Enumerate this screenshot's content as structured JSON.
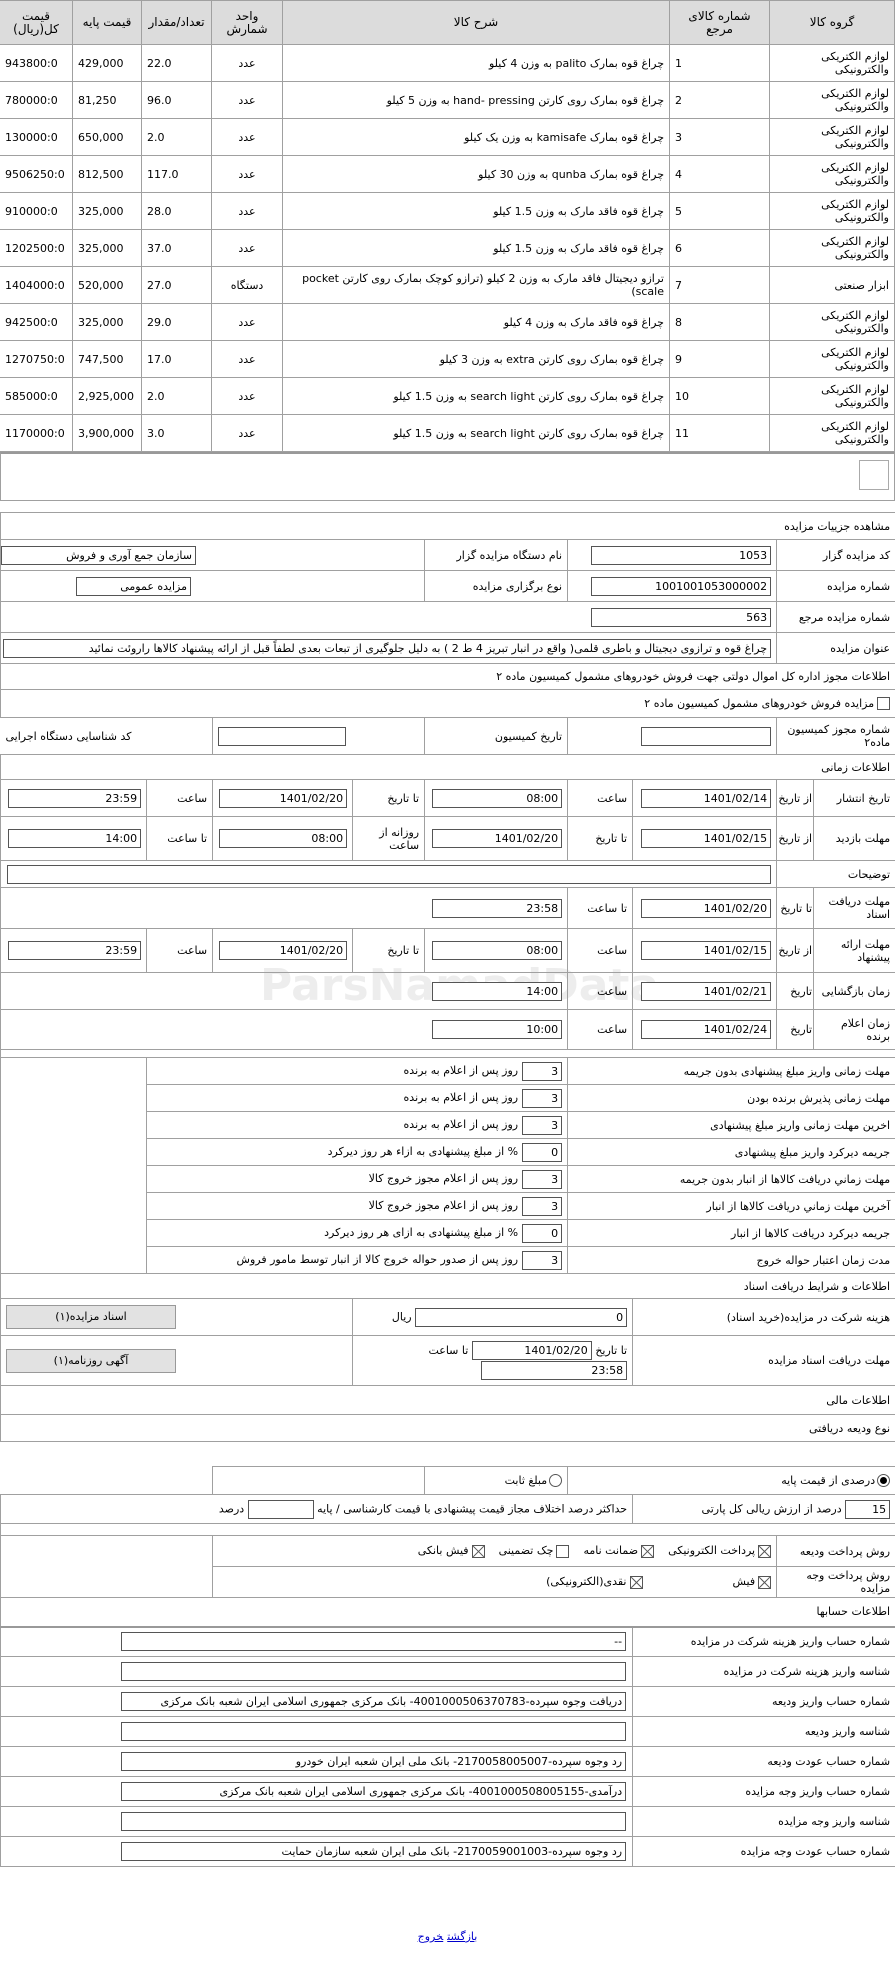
{
  "items_table": {
    "headers": [
      "گروه کالا",
      "شماره کالای مرجع",
      "شرح کالا",
      "واحد شمارش",
      "تعداد/مقدار",
      "قیمت پایه",
      "قیمت کل(ریال)"
    ],
    "rows": [
      [
        "لوازم الکتریکی والکترونیکی",
        "1",
        "چراغ قوه بمارک palito به وزن 4 کیلو",
        "عدد",
        "22.0",
        "429,000",
        "943800:0"
      ],
      [
        "لوازم الکتریکی والکترونیکی",
        "2",
        "چراغ قوه بمارک روی کارتن hand- pressing به وزن 5 کیلو",
        "عدد",
        "96.0",
        "81,250",
        "780000:0"
      ],
      [
        "لوازم الکتریکی والکترونیکی",
        "3",
        "چراغ قوه بمارک kamisafe به وزن یک کیلو",
        "عدد",
        "2.0",
        "650,000",
        "130000:0"
      ],
      [
        "لوازم الکتریکی والکترونیکی",
        "4",
        "چراغ قوه بمارک qunba به وزن 30 کیلو",
        "عدد",
        "117.0",
        "812,500",
        "9506250:0"
      ],
      [
        "لوازم الکتریکی والکترونیکی",
        "5",
        "چراغ قوه فاقد مارک به وزن 1.5 کیلو",
        "عدد",
        "28.0",
        "325,000",
        "910000:0"
      ],
      [
        "لوازم الکتریکی والکترونیکی",
        "6",
        "چراغ قوه فاقد مارک به وزن 1.5 کیلو",
        "عدد",
        "37.0",
        "325,000",
        "1202500:0"
      ],
      [
        "ابزار صنعتی",
        "7",
        "ترازو دیجیتال فاقد مارک به وزن 2 کیلو (ترازو کوچک بمارک روی کارتن pocket scale)",
        "دستگاه",
        "27.0",
        "520,000",
        "1404000:0"
      ],
      [
        "لوازم الکتریکی والکترونیکی",
        "8",
        "چراغ قوه فاقد مارک به وزن 4 کیلو",
        "عدد",
        "29.0",
        "325,000",
        "942500:0"
      ],
      [
        "لوازم الکتریکی والکترونیکی",
        "9",
        "چراغ قوه بمارک روی کارتن extra به وزن 3 کیلو",
        "عدد",
        "17.0",
        "747,500",
        "1270750:0"
      ],
      [
        "لوازم الکتریکی والکترونیکی",
        "10",
        "چراغ قوه بمارک روی کارتن search light به وزن 1.5 کیلو",
        "عدد",
        "2.0",
        "2,925,000",
        "585000:0"
      ],
      [
        "لوازم الکتریکی والکترونیکی",
        "11",
        "چراغ قوه بمارک روی کارتن search light به وزن 1.5 کیلو",
        "عدد",
        "3.0",
        "3,900,000",
        "1170000:0"
      ]
    ]
  },
  "details": {
    "title": "مشاهده جزییات مزایده",
    "auctioneer_code_label": "کد مزایده گزار",
    "auctioneer_code": "1053",
    "auctioneer_name_label": "نام دستگاه مزایده گزار",
    "auctioneer_name": "سازمان جمع آوری و فروش",
    "auction_number_label": "شماره مزایده",
    "auction_number": "1001001053000002",
    "auction_type_label": "نوع برگزاری مزایده",
    "auction_type": "مزایده عمومی",
    "ref_number_label": "شماره مزایده مرجع",
    "ref_number": "563",
    "auction_title_label": "عنوان مزایده",
    "auction_title": "چراغ قوه و ترازوی دیجیتال و باطری قلمی( واقع در انبار تبریز 4 ط 2 ) به دلیل جلوگیری از تبعات بعدی لطفاً قبل از ارائه پیشنهاد کالاها راروئت نمائید",
    "permit_info": "اطلاعات مجوز اداره کل اموال دولتی جهت فروش خودروهای مشمول کمیسیون ماده ۲",
    "vehicle_checkbox_label": "مزایده فروش خودروهای مشمول کمیسیون ماده ۲",
    "permit_number_label": "شماره مجوز کمیسیون ماده۲",
    "commission_date_label": "تاریخ کمیسیون",
    "executive_code_label": "کد شناسایی دستگاه اجرایی"
  },
  "timing": {
    "section": "اطلاعات زمانی",
    "from_date": "از تاریخ",
    "to_date": "تا تاریخ",
    "hour": "ساعت",
    "to_hour": "تا ساعت",
    "date": "تاریخ",
    "daily_from_hour": "روزانه از ساعت",
    "publish_label": "تاریخ انتشار",
    "publish_from": "1401/02/14",
    "publish_from_time": "08:00",
    "publish_to": "1401/02/20",
    "publish_to_time": "23:59",
    "visit_label": "مهلت بازدید",
    "visit_from": "1401/02/15",
    "visit_to": "1401/02/20",
    "visit_daily_from": "08:00",
    "visit_to_time": "14:00",
    "description_label": "توضیحات",
    "docs_label": "مهلت دریافت اسناد",
    "docs_to": "1401/02/20",
    "docs_to_time": "23:58",
    "offer_label": "مهلت ارائه پیشنهاد",
    "offer_from": "1401/02/15",
    "offer_from_time": "08:00",
    "offer_to": "1401/02/20",
    "offer_to_time": "23:59",
    "opening_label": "زمان بازگشایی",
    "opening_date": "1401/02/21",
    "opening_time": "14:00",
    "winner_label": "زمان اعلام برنده",
    "winner_date": "1401/02/24",
    "winner_time": "10:00"
  },
  "deadlines": [
    {
      "label": "مهلت زمانی واریز مبلغ پیشنهادی بدون جریمه",
      "value": "3",
      "unit": "روز پس از اعلام به برنده"
    },
    {
      "label": "مهلت زمانی پذیرش برنده بودن",
      "value": "3",
      "unit": "روز پس از اعلام به برنده"
    },
    {
      "label": "اخرین مهلت زمانی واریز مبلغ پیشنهادی",
      "value": "3",
      "unit": "روز پس از اعلام به برنده"
    },
    {
      "label": "جریمه دیرکرد واریز مبلغ پیشنهادی",
      "value": "0",
      "unit": "% از مبلغ پیشنهادی به ازاء هر روز دیرکرد"
    },
    {
      "label": "مهلت زماني دريافت کالاها از انبار بدون جريمه",
      "value": "3",
      "unit": "روز پس از اعلام مجوز خروج کالا"
    },
    {
      "label": "آخرین مهلت زماني دريافت کالاها از انبار",
      "value": "3",
      "unit": "روز پس از اعلام مجوز خروج کالا"
    },
    {
      "label": "جریمه دیرکرد دریافت کالاها از انبار",
      "value": "0",
      "unit": "% از مبلغ پیشنهادی به ازای هر روز دیرکرد"
    },
    {
      "label": "مدت زمان اعتبار حواله خروج",
      "value": "3",
      "unit": "روز پس از صدور حواله خروج کالا از انبار توسط مامور فروش"
    }
  ],
  "documents": {
    "section": "اطلاعات و شرایط دریافت اسناد",
    "fee_label": "هزینه شرکت در مزایده(خرید اسناد)",
    "fee": "0",
    "fee_unit": "ریال",
    "docs_button": "اسناد مزایده(۱)",
    "deadline_label": "مهلت دریافت اسناد مزایده",
    "to_date": "تا تاریخ",
    "date": "1401/02/20",
    "to_hour": "تا ساعت",
    "time": "23:58",
    "newspaper_button": "آگهی روزنامه(۱)"
  },
  "financial": {
    "section": "اطلاعات مالی",
    "deposit_type": "نوع ودیعه دریافتی",
    "radio_percent": "درصدی از قیمت پایه",
    "radio_percent_selected": true,
    "radio_fixed": "مبلغ ثابت",
    "radio_fixed_selected": false,
    "percent_value": "15",
    "percent_text": "درصد از ارزش ریالی کل پارتی",
    "max_diff_label": "حداکثر درصد اختلاف مجاز قیمت پیشنهادی با قیمت کارشناسی / پایه",
    "max_diff_value": "",
    "max_diff_unit": "درصد",
    "deposit_method_label": "روش پرداخت ودیعه",
    "deposit_methods": [
      {
        "label": "پرداخت الکترونیکی",
        "checked": true
      },
      {
        "label": "ضمانت نامه",
        "checked": true
      },
      {
        "label": "چک تضمینی",
        "checked": false
      },
      {
        "label": "فیش بانکی",
        "checked": true
      }
    ],
    "auction_payment_label": "روش پرداخت وجه مزایده",
    "auction_payments": [
      {
        "label": "فیش",
        "checked": true
      },
      {
        "label": "نقدی(الکترونیکی)",
        "checked": true
      }
    ]
  },
  "accounts": {
    "section": "اطلاعات حسابها",
    "rows": [
      {
        "label": "شماره حساب واریز هزینه شرکت در مزایده",
        "value": "--"
      },
      {
        "label": "شناسه واریز هزینه شرکت در مزایده",
        "value": ""
      },
      {
        "label": "شماره حساب واریز ودیعه",
        "value": "دریافت وجوه سپرده-4001000506370783- بانک مرکزی جمهوری اسلامی ایران شعبه بانک مرکزی"
      },
      {
        "label": "شناسه واریز ودیعه",
        "value": ""
      },
      {
        "label": "شماره حساب عودت ودیعه",
        "value": "رد وجوه سپرده-2170058005007- بانک ملی ایران شعبه ایران خودرو"
      },
      {
        "label": "شماره حساب واریز وجه مزایده",
        "value": "درآمدی-4001000508005155- بانک مرکزی جمهوری اسلامی ایران شعبه بانک مرکزی"
      },
      {
        "label": "شناسه واریز وجه مزایده",
        "value": ""
      },
      {
        "label": "شماره حساب عودت وجه مزایده",
        "value": "رد وجوه سپرده-2170059001003- بانک ملی ایران شعبه سازمان حمایت"
      }
    ]
  },
  "footer": {
    "back": "بازگشت",
    "exit": "خروج"
  },
  "watermark": "ParsNamadData",
  "colors": {
    "header_bg": "#dcdcdc",
    "border": "#a0a0a0",
    "link": "#0000cc",
    "button_bg": "#e2e2e2"
  }
}
